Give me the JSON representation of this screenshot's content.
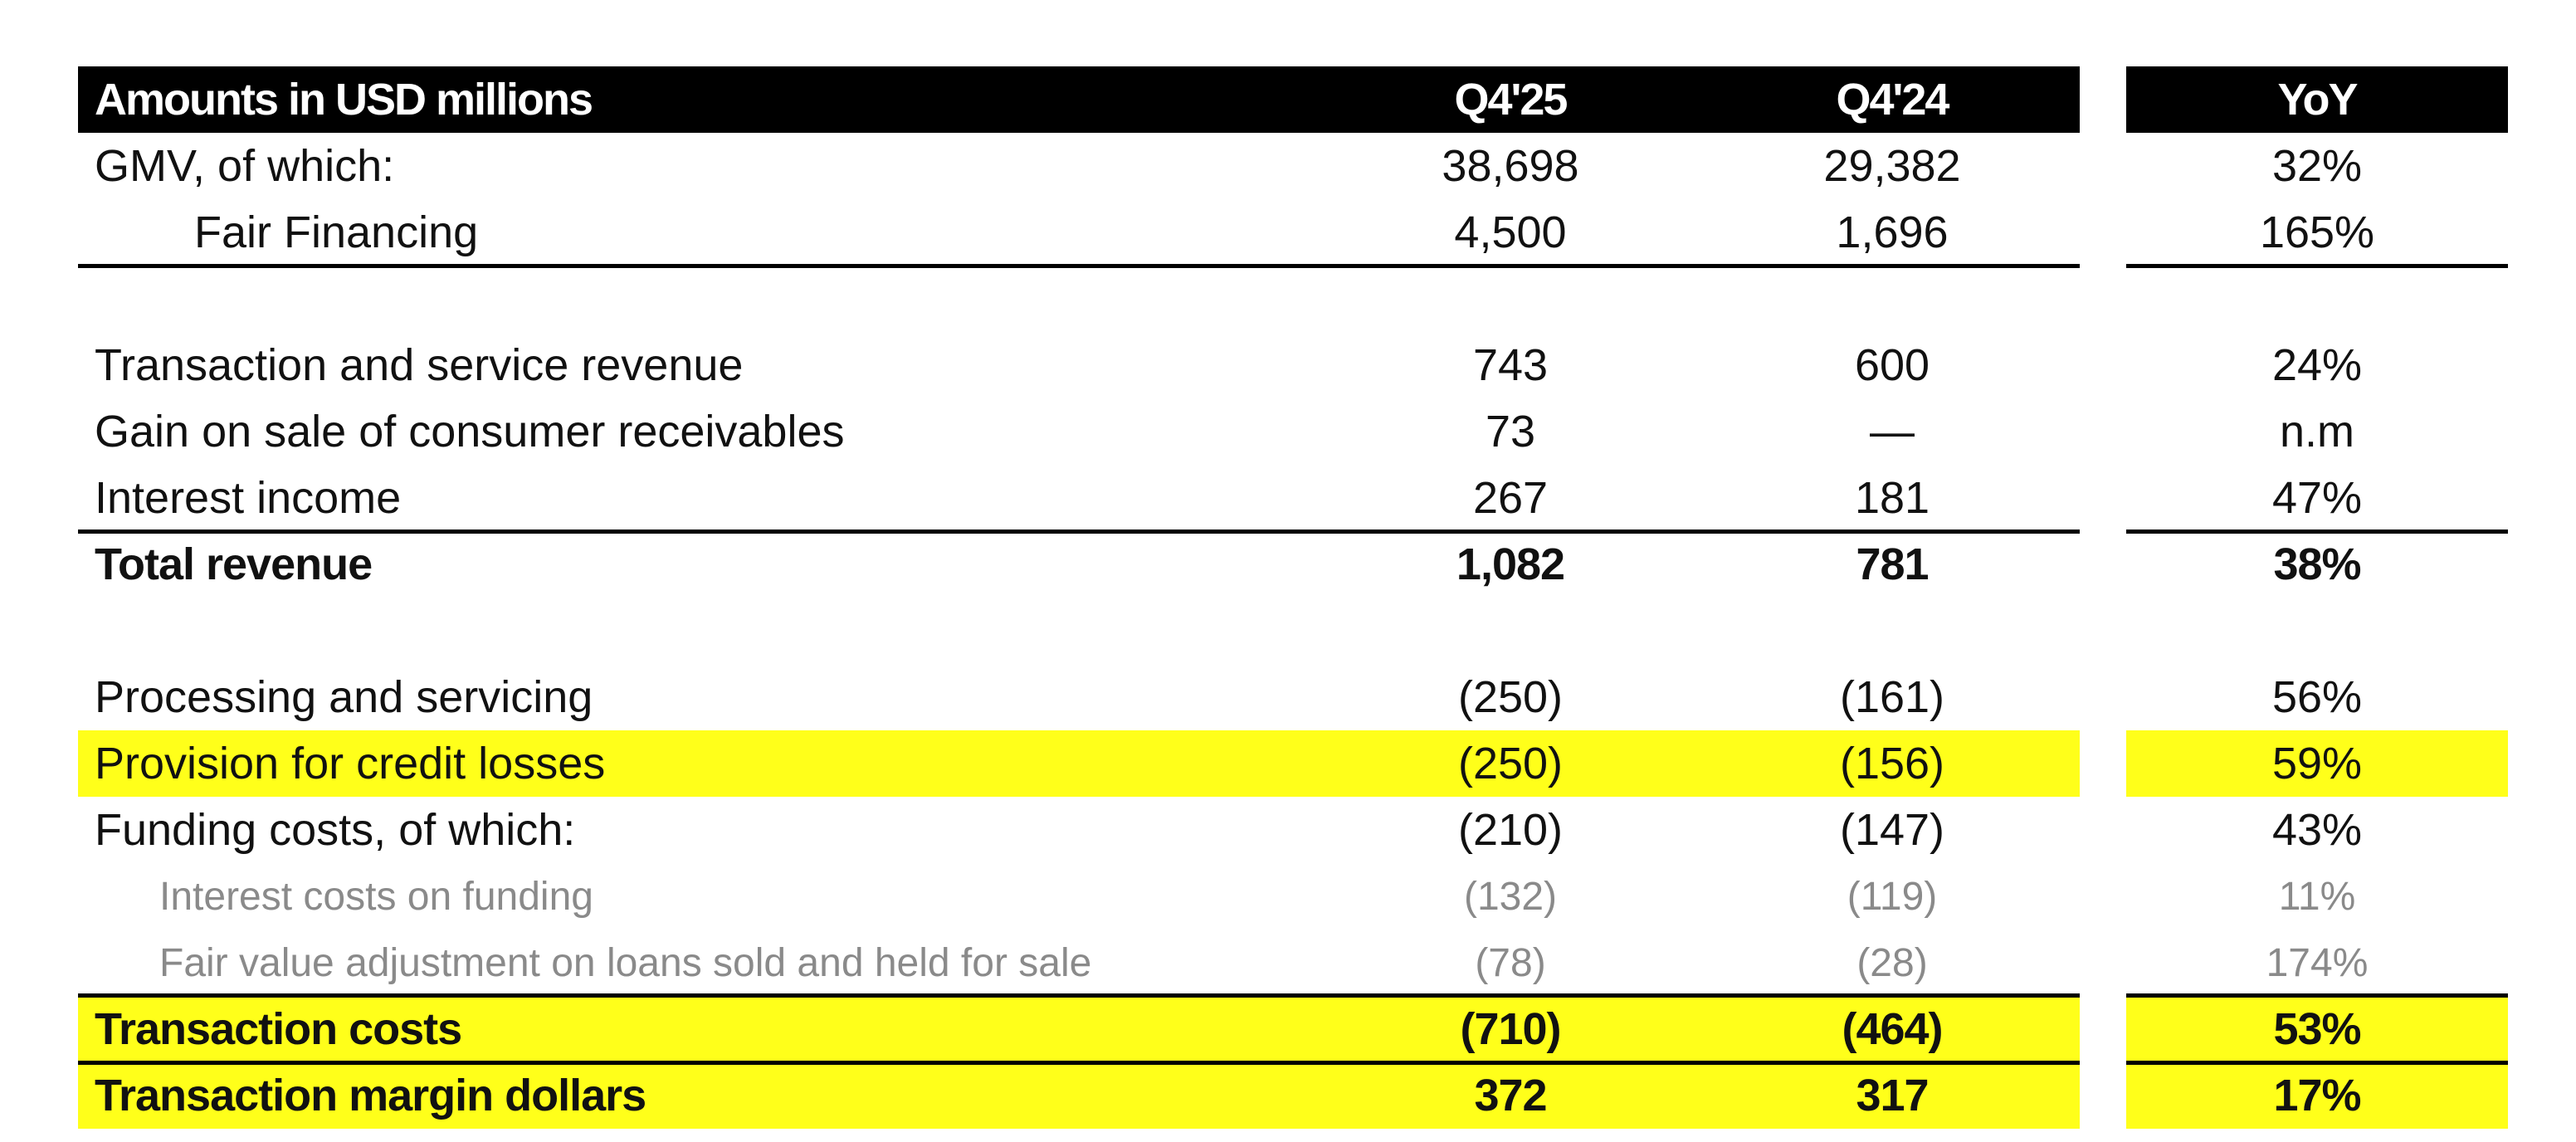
{
  "header": {
    "label": "Amounts in USD millions",
    "q425": "Q4'25",
    "q424": "Q4'24",
    "yoy": "YoY"
  },
  "rows": [
    {
      "label": "GMV, of which:",
      "q425": "38,698",
      "q424": "29,382",
      "yoy": "32%"
    },
    {
      "label": "Fair Financing",
      "q425": "4,500",
      "q424": "1,696",
      "yoy": "165%"
    },
    {
      "label": "Transaction and service revenue",
      "q425": "743",
      "q424": "600",
      "yoy": "24%"
    },
    {
      "label": "Gain on sale of consumer receivables",
      "q425": "73",
      "q424": "—",
      "yoy": "n.m"
    },
    {
      "label": "Interest income",
      "q425": "267",
      "q424": "181",
      "yoy": "47%"
    },
    {
      "label": "Total revenue",
      "q425": "1,082",
      "q424": "781",
      "yoy": "38%"
    },
    {
      "label": "Processing and servicing",
      "q425": "(250)",
      "q424": "(161)",
      "yoy": "56%"
    },
    {
      "label": "Provision for credit losses",
      "q425": "(250)",
      "q424": "(156)",
      "yoy": "59%"
    },
    {
      "label": "Funding costs, of which:",
      "q425": "(210)",
      "q424": "(147)",
      "yoy": "43%"
    },
    {
      "label": "Interest costs on funding",
      "q425": "(132)",
      "q424": "(119)",
      "yoy": "11%"
    },
    {
      "label": "Fair value adjustment on loans sold and held for sale",
      "q425": "(78)",
      "q424": "(28)",
      "yoy": "174%"
    },
    {
      "label": "Transaction costs",
      "q425": "(710)",
      "q424": "(464)",
      "yoy": "53%"
    },
    {
      "label": "Transaction margin dollars",
      "q425": "372",
      "q424": "317",
      "yoy": "17%"
    }
  ],
  "colors": {
    "header_bg": "#000000",
    "highlight": "#ffff1a",
    "sub_text": "#8a8a8a"
  }
}
